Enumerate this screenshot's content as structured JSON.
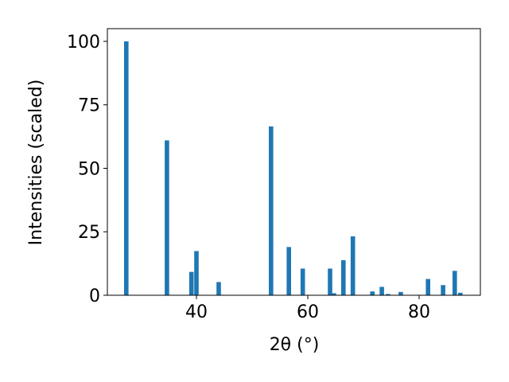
{
  "chart_data": {
    "type": "bar",
    "x_label": "2θ (°)",
    "y_label": "Intensities (scaled)",
    "color": "#1f77b4",
    "x": [
      27.4,
      34.7,
      39.1,
      40.0,
      44.0,
      53.4,
      56.6,
      59.1,
      64.0,
      64.7,
      66.4,
      68.1,
      71.6,
      73.3,
      74.4,
      76.7,
      81.6,
      84.3,
      86.4,
      87.4
    ],
    "values": [
      100,
      61,
      9.2,
      17.4,
      5.2,
      66.5,
      19,
      10.5,
      10.5,
      0.8,
      13.8,
      23.2,
      1.5,
      3.3,
      0.5,
      1.3,
      6.4,
      4,
      9.6,
      1
    ],
    "xlim": [
      24,
      91
    ],
    "ylim": [
      0,
      105
    ],
    "xticks": [
      40,
      60,
      80
    ],
    "yticks": [
      0,
      25,
      50,
      75,
      100
    ]
  }
}
